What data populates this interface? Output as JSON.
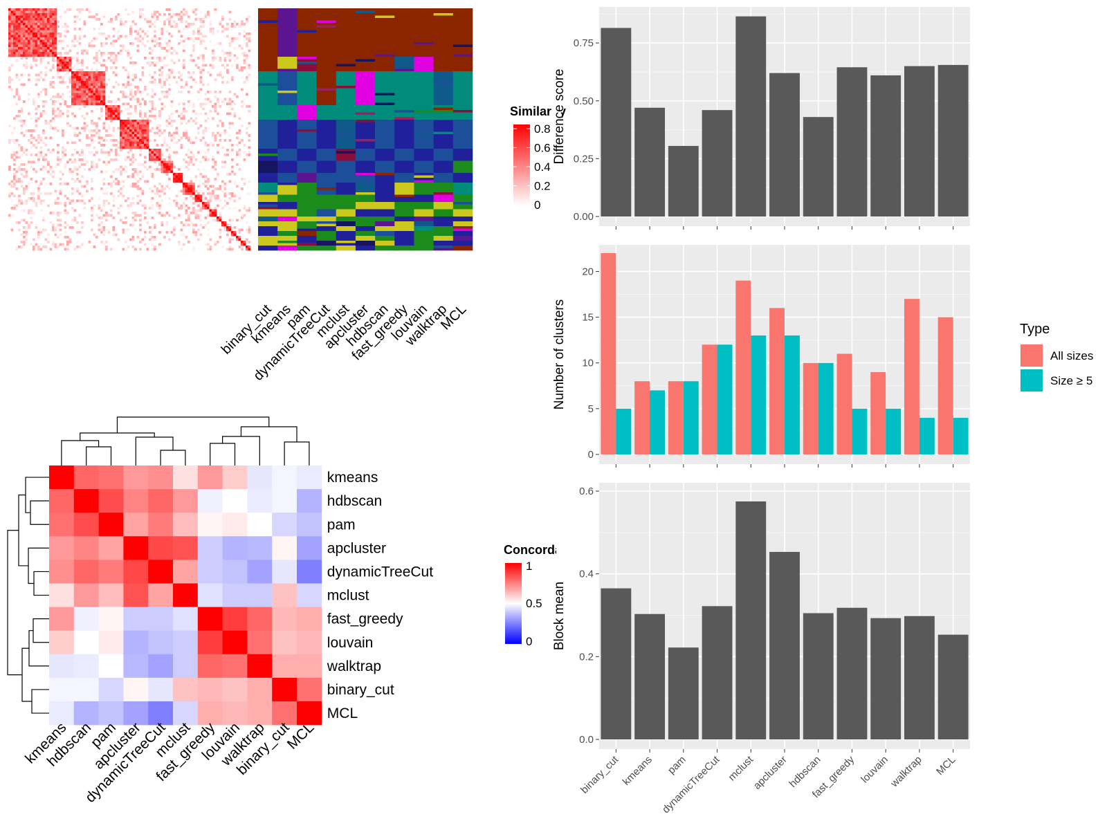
{
  "colors": {
    "panel_bg": "#EBEBEB",
    "grid": "#FFFFFF",
    "bar": "#595959",
    "all_sizes": "#F8766D",
    "size_ge5": "#00BFC4",
    "sim_high": "#FF0000",
    "sim_low": "#FFFFFF",
    "conc_high": "#FF0000",
    "conc_mid": "#FFFFFF",
    "conc_low": "#0000FF",
    "cluster_palette": [
      "#8B2500",
      "#008B7A",
      "#1C4E9A",
      "#20209B",
      "#1B8B1B",
      "#CDC81E",
      "#9B2060",
      "#0F5A8B",
      "#5B1590",
      "#E000E0",
      "#8B0D3A",
      "#151560"
    ]
  },
  "chart_data": [
    {
      "id": "similarity_heatmap",
      "type": "heatmap",
      "legend_title": "Similarity",
      "legend_ticks": [
        "0.8",
        "0.6",
        "0.4",
        "0.2",
        "0"
      ],
      "range": [
        0,
        0.8
      ],
      "n_signatures": 100,
      "block_sizes": [
        20,
        6,
        14,
        6,
        12,
        5,
        5,
        4,
        5,
        3,
        3,
        3,
        2,
        2,
        2,
        2,
        2,
        2,
        2
      ],
      "methods": [
        "binary_cut",
        "kmeans",
        "pam",
        "dynamicTreeCut",
        "mclust",
        "apcluster",
        "hdbscan",
        "fast_greedy",
        "louvain",
        "walktrap",
        "MCL"
      ],
      "cluster_membership_columns": 11
    },
    {
      "id": "concordance_heatmap",
      "type": "heatmap",
      "legend_title": "Concordance",
      "legend_ticks": [
        "1",
        "0.5",
        "0"
      ],
      "range": [
        0,
        1
      ],
      "rows": [
        "kmeans",
        "hdbscan",
        "pam",
        "apcluster",
        "dynamicTreeCut",
        "mclust",
        "fast_greedy",
        "louvain",
        "walktrap",
        "binary_cut",
        "MCL"
      ],
      "columns": [
        "kmeans",
        "hdbscan",
        "pam",
        "apcluster",
        "dynamicTreeCut",
        "mclust",
        "fast_greedy",
        "louvain",
        "walktrap",
        "binary_cut",
        "MCL"
      ],
      "values": [
        [
          1.0,
          0.8,
          0.78,
          0.7,
          0.72,
          0.56,
          0.7,
          0.6,
          0.45,
          0.48,
          0.46
        ],
        [
          0.8,
          1.0,
          0.85,
          0.74,
          0.8,
          0.7,
          0.47,
          0.5,
          0.46,
          0.48,
          0.35
        ],
        [
          0.78,
          0.85,
          1.0,
          0.68,
          0.76,
          0.63,
          0.52,
          0.54,
          0.5,
          0.42,
          0.38
        ],
        [
          0.7,
          0.74,
          0.68,
          1.0,
          0.86,
          0.84,
          0.4,
          0.35,
          0.36,
          0.52,
          0.32
        ],
        [
          0.72,
          0.8,
          0.76,
          0.86,
          1.0,
          0.68,
          0.4,
          0.38,
          0.32,
          0.45,
          0.25
        ],
        [
          0.56,
          0.7,
          0.63,
          0.84,
          0.68,
          1.0,
          0.44,
          0.4,
          0.4,
          0.62,
          0.42
        ],
        [
          0.7,
          0.47,
          0.52,
          0.4,
          0.4,
          0.44,
          1.0,
          0.88,
          0.8,
          0.64,
          0.66
        ],
        [
          0.6,
          0.5,
          0.54,
          0.35,
          0.38,
          0.4,
          0.88,
          1.0,
          0.78,
          0.62,
          0.64
        ],
        [
          0.45,
          0.46,
          0.5,
          0.36,
          0.32,
          0.4,
          0.8,
          0.78,
          1.0,
          0.66,
          0.66
        ],
        [
          0.48,
          0.48,
          0.42,
          0.52,
          0.45,
          0.62,
          0.64,
          0.62,
          0.66,
          1.0,
          0.78
        ],
        [
          0.46,
          0.35,
          0.38,
          0.32,
          0.25,
          0.42,
          0.66,
          0.64,
          0.66,
          0.78,
          1.0
        ]
      ]
    },
    {
      "id": "difference_score",
      "type": "bar",
      "ylabel": "Difference score",
      "ylim": [
        0,
        0.87
      ],
      "yticks": [
        0,
        0.25,
        0.5,
        0.75
      ],
      "ytick_labels": [
        "0.00",
        "0.25",
        "0.50",
        "0.75"
      ],
      "categories": [
        "binary_cut",
        "kmeans",
        "pam",
        "dynamicTreeCut",
        "mclust",
        "apcluster",
        "hdbscan",
        "fast_greedy",
        "louvain",
        "walktrap",
        "MCL"
      ],
      "values": [
        0.815,
        0.47,
        0.305,
        0.46,
        0.865,
        0.62,
        0.43,
        0.645,
        0.61,
        0.65,
        0.655
      ]
    },
    {
      "id": "number_of_clusters",
      "type": "bar",
      "ylabel": "Number of clusters",
      "ylim": [
        0,
        22
      ],
      "yticks": [
        0,
        5,
        10,
        15,
        20
      ],
      "ytick_labels": [
        "0",
        "5",
        "10",
        "15",
        "20"
      ],
      "legend_title": "Type",
      "categories": [
        "binary_cut",
        "kmeans",
        "pam",
        "dynamicTreeCut",
        "mclust",
        "apcluster",
        "hdbscan",
        "fast_greedy",
        "louvain",
        "walktrap",
        "MCL"
      ],
      "series": [
        {
          "name": "All sizes",
          "values": [
            22,
            8,
            8,
            12,
            19,
            16,
            10,
            11,
            9,
            17,
            15
          ]
        },
        {
          "name": "Size ≥ 5",
          "values": [
            5,
            7,
            8,
            12,
            13,
            13,
            10,
            5,
            5,
            4,
            4
          ]
        }
      ]
    },
    {
      "id": "block_mean",
      "type": "bar",
      "ylabel": "Block mean",
      "ylim": [
        0,
        0.6
      ],
      "yticks": [
        0,
        0.2,
        0.4,
        0.6
      ],
      "ytick_labels": [
        "0.0",
        "0.2",
        "0.4",
        "0.6"
      ],
      "categories": [
        "binary_cut",
        "kmeans",
        "pam",
        "dynamicTreeCut",
        "mclust",
        "apcluster",
        "hdbscan",
        "fast_greedy",
        "louvain",
        "walktrap",
        "MCL"
      ],
      "values": [
        0.365,
        0.303,
        0.222,
        0.322,
        0.575,
        0.453,
        0.305,
        0.318,
        0.293,
        0.298,
        0.253
      ]
    }
  ]
}
